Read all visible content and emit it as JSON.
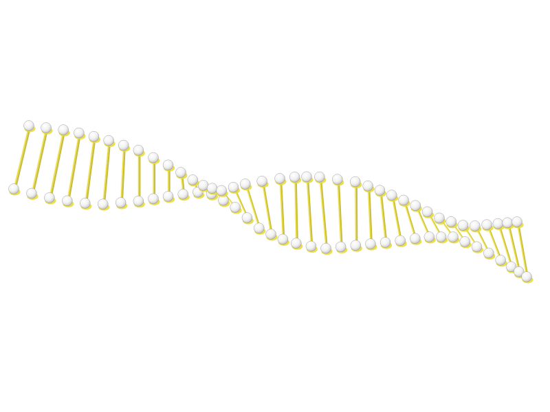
{
  "image": {
    "subject": "dna-double-helix",
    "background_color": "#ffffff",
    "rung_color": "#e9dc3a",
    "rung_shadow_color": "#b8aa1c",
    "bead_highlight_color": "#ffffff",
    "bead_shadow_color": "#c9c9c9"
  }
}
